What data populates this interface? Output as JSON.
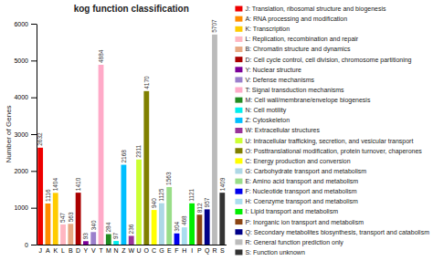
{
  "chart_data": {
    "type": "bar",
    "title": "kog function classification",
    "ylabel": "Number of Genes",
    "categories": [
      "J",
      "A",
      "K",
      "L",
      "B",
      "D",
      "Y",
      "V",
      "T",
      "M",
      "N",
      "Z",
      "W",
      "U",
      "O",
      "C",
      "G",
      "E",
      "F",
      "H",
      "I",
      "P",
      "Q",
      "R",
      "S"
    ],
    "values": [
      2632,
      1116,
      1404,
      547,
      563,
      1410,
      93,
      340,
      4884,
      284,
      97,
      2168,
      236,
      2311,
      4170,
      940,
      1125,
      1563,
      304,
      468,
      1121,
      812,
      957,
      5707,
      1409
    ],
    "colors": [
      "#ee0000",
      "#ff8c00",
      "#ffcc00",
      "#ffb6c1",
      "#e8a882",
      "#aa0000",
      "#7b0099",
      "#9b7fcc",
      "#ffaac8",
      "#228b22",
      "#00eeee",
      "#00bfff",
      "#993399",
      "#ccff33",
      "#808000",
      "#ffff00",
      "#add8e6",
      "#99dd88",
      "#0000ee",
      "#aaddee",
      "#00ee00",
      "#8b4513",
      "#000088",
      "#bbbbbb",
      "#333333"
    ],
    "legend_labels": [
      "J: Translation, ribosomal structure and biogenesis",
      "A: RNA processing and modification",
      "K: Transcription",
      "L: Replication, recombination and repair",
      "B: Chromatin structure and dynamics",
      "D: Cell cycle control, cell division, chromosome partitioning",
      "Y: Nuclear structure",
      "V: Defense mechanisms",
      "T: Signal transduction mechanisms",
      "M: Cell wall/membrane/envelope biogenesis",
      "N: Cell motility",
      "Z: Cytoskeleton",
      "W: Extracellular structures",
      "U: Intracellular trafficking, secretion, and vesicular transport",
      "O: Posttranslational modification, protein turnover, chaperones",
      "C: Energy production and conversion",
      "G: Carbohydrate transport and metabolism",
      "E: Amino acid transport and metabolism",
      "F: Nucleotide transport and metabolism",
      "H: Coenzyme transport and metabolism",
      "I: Lipid transport and metabolism",
      "P: Inorganic ion transport and metabolism",
      "Q: Secondary metabolites biosynthesis, transport and catabolism",
      "R: General function prediction only",
      "S: Function unknown"
    ],
    "legend": "right",
    "ylim": [
      0,
      6000
    ],
    "yticks": [
      0,
      1000,
      2000,
      3000,
      4000,
      5000,
      6000
    ],
    "grid": false,
    "data_labels": true
  }
}
